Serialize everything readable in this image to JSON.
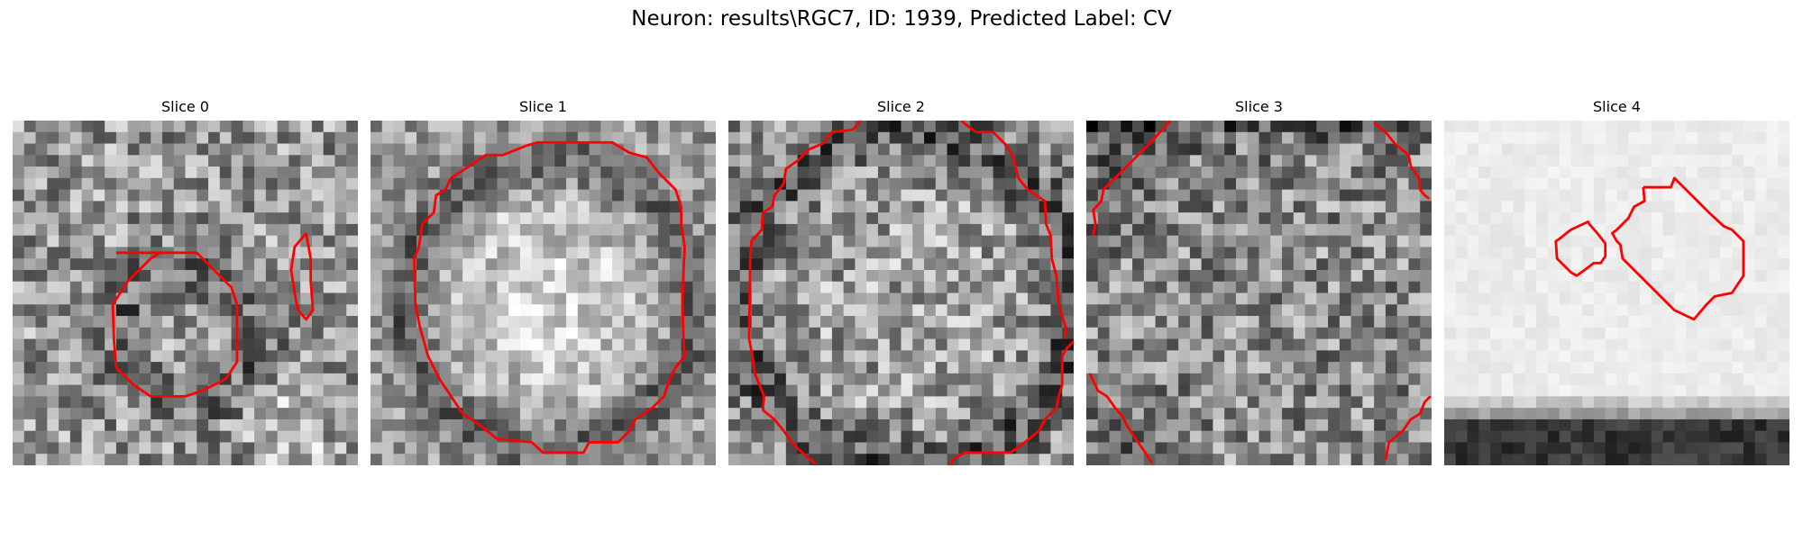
{
  "figure": {
    "title": "Neuron: results\\RGC7, ID: 1939, Predicted Label: CV"
  },
  "panels": [
    {
      "title": "Slice 0"
    },
    {
      "title": "Slice 1"
    },
    {
      "title": "Slice 2"
    },
    {
      "title": "Slice 3"
    },
    {
      "title": "Slice 4"
    }
  ],
  "colors": {
    "contour": "#ff0000",
    "colormap": "gray"
  }
}
